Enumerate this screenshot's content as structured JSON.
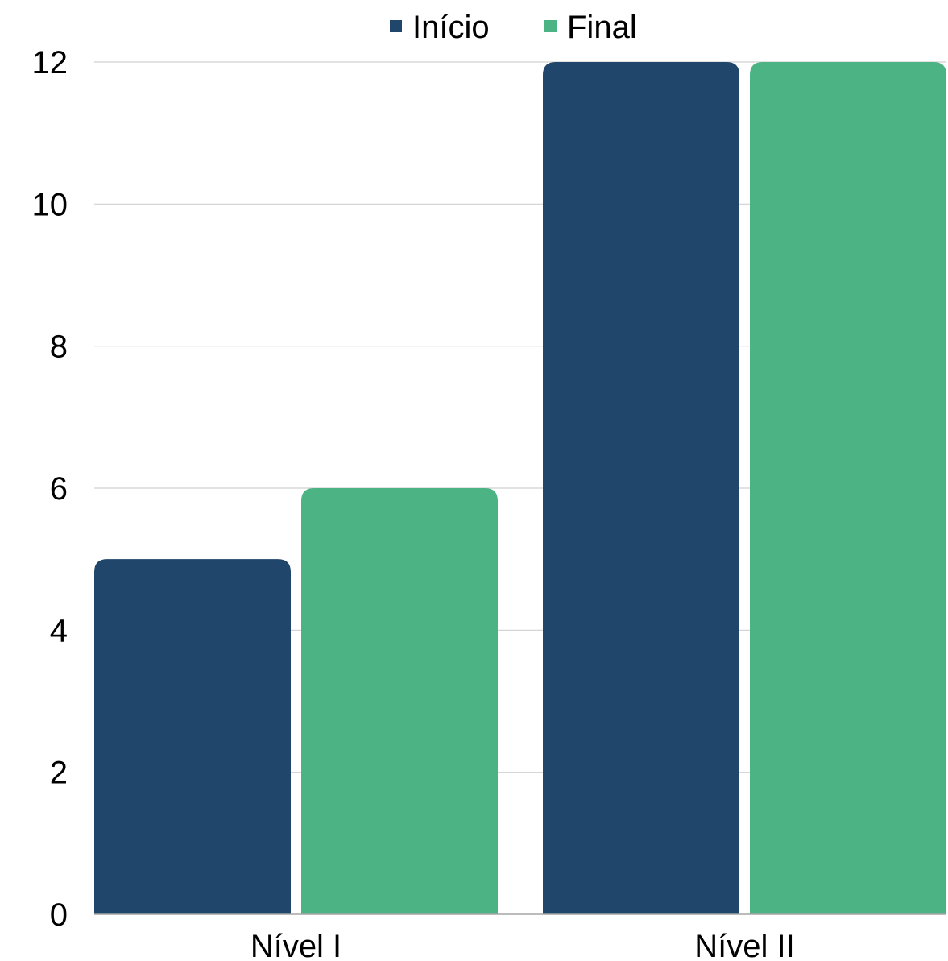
{
  "chart_data": {
    "type": "bar",
    "categories": [
      "Nível I",
      "Nível II"
    ],
    "series": [
      {
        "name": "Início",
        "values": [
          5,
          12
        ],
        "color": "#21466B"
      },
      {
        "name": "Final",
        "values": [
          6,
          12
        ],
        "color": "#4BB384"
      }
    ],
    "title": "",
    "xlabel": "",
    "ylabel": "",
    "ylim": [
      0,
      12
    ],
    "yticks": [
      0,
      2,
      4,
      6,
      8,
      10,
      12
    ],
    "grid": true,
    "legend_position": "top"
  }
}
